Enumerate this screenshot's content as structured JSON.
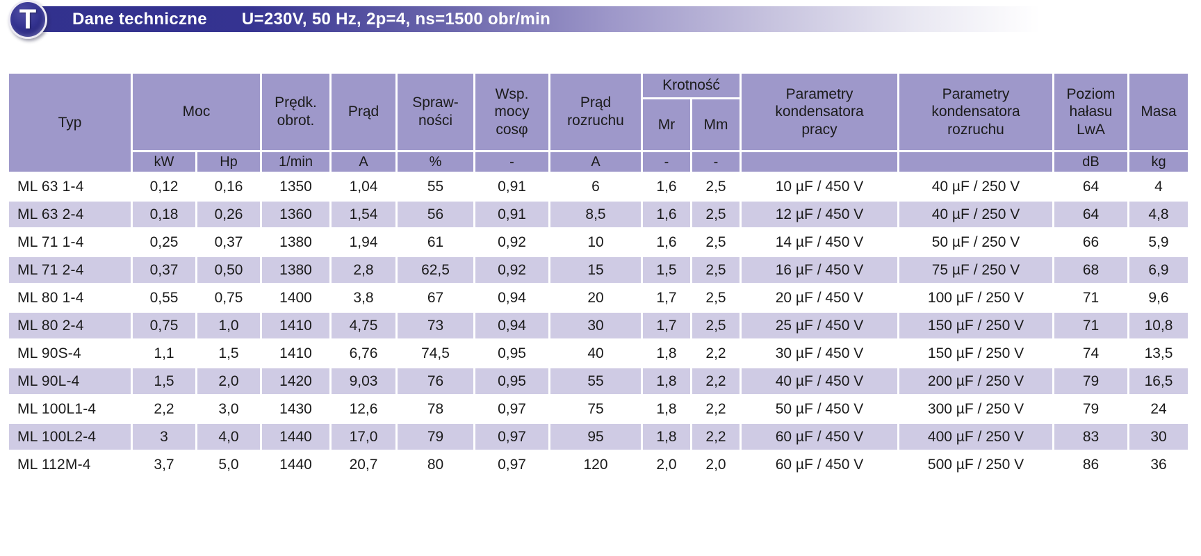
{
  "title_bar": {
    "logo_letter": "T",
    "title": "Dane techniczne",
    "subtitle": "U=230V, 50 Hz, 2p=4, ns=1500 obr/min"
  },
  "colors": {
    "bar_dark": "#32318d",
    "header_cell": "#9e98ca",
    "row_shade": "#cfcbe4"
  },
  "table": {
    "headers": {
      "typ": "Typ",
      "moc": "Moc",
      "predk_obrot": "Prędk.\nobrot.",
      "prad": "Prąd",
      "sprawnosc": "Spraw-\nności",
      "wsp_mocy": "Wsp.\nmocy\ncosφ",
      "prad_rozruchu": "Prąd\nrozruchu",
      "krotnosc": "Krotność",
      "mr": "Mr",
      "mm": "Mm",
      "kondensator_pracy": "Parametry\nkondensatora\npracy",
      "kondensator_rozruchu": "Parametry\nkondensatora\nrozruchu",
      "poziom_halasu": "Poziom\nhałasu\nLwA",
      "masa": "Masa"
    },
    "units": [
      "kW",
      "Hp",
      "1/min",
      "A",
      "%",
      "-",
      "A",
      "-",
      "-",
      "",
      "",
      "dB",
      "kg"
    ],
    "rows": [
      [
        "ML 63 1-4",
        "0,12",
        "0,16",
        "1350",
        "1,04",
        "55",
        "0,91",
        "6",
        "1,6",
        "2,5",
        "10 µF / 450 V",
        "40 µF / 250 V",
        "64",
        "4"
      ],
      [
        "ML 63 2-4",
        "0,18",
        "0,26",
        "1360",
        "1,54",
        "56",
        "0,91",
        "8,5",
        "1,6",
        "2,5",
        "12 µF / 450 V",
        "40 µF / 250 V",
        "64",
        "4,8"
      ],
      [
        "ML 71 1-4",
        "0,25",
        "0,37",
        "1380",
        "1,94",
        "61",
        "0,92",
        "10",
        "1,6",
        "2,5",
        "14 µF / 450 V",
        "50 µF / 250 V",
        "66",
        "5,9"
      ],
      [
        "ML 71 2-4",
        "0,37",
        "0,50",
        "1380",
        "2,8",
        "62,5",
        "0,92",
        "15",
        "1,5",
        "2,5",
        "16 µF / 450 V",
        "75 µF / 250 V",
        "68",
        "6,9"
      ],
      [
        "ML 80 1-4",
        "0,55",
        "0,75",
        "1400",
        "3,8",
        "67",
        "0,94",
        "20",
        "1,7",
        "2,5",
        "20 µF / 450 V",
        "100 µF / 250 V",
        "71",
        "9,6"
      ],
      [
        "ML 80 2-4",
        "0,75",
        "1,0",
        "1410",
        "4,75",
        "73",
        "0,94",
        "30",
        "1,7",
        "2,5",
        "25 µF / 450 V",
        "150 µF / 250 V",
        "71",
        "10,8"
      ],
      [
        "ML 90S-4",
        "1,1",
        "1,5",
        "1410",
        "6,76",
        "74,5",
        "0,95",
        "40",
        "1,8",
        "2,2",
        "30 µF / 450 V",
        "150 µF / 250 V",
        "74",
        "13,5"
      ],
      [
        "ML 90L-4",
        "1,5",
        "2,0",
        "1420",
        "9,03",
        "76",
        "0,95",
        "55",
        "1,8",
        "2,2",
        "40 µF / 450 V",
        "200 µF / 250 V",
        "79",
        "16,5"
      ],
      [
        "ML 100L1-4",
        "2,2",
        "3,0",
        "1430",
        "12,6",
        "78",
        "0,97",
        "75",
        "1,8",
        "2,2",
        "50 µF / 450 V",
        "300 µF / 250 V",
        "79",
        "24"
      ],
      [
        "ML 100L2-4",
        "3",
        "4,0",
        "1440",
        "17,0",
        "79",
        "0,97",
        "95",
        "1,8",
        "2,2",
        "60 µF / 450 V",
        "400 µF / 250 V",
        "83",
        "30"
      ],
      [
        "ML 112M-4",
        "3,7",
        "5,0",
        "1440",
        "20,7",
        "80",
        "0,97",
        "120",
        "2,0",
        "2,0",
        "60 µF / 450 V",
        "500 µF / 250 V",
        "86",
        "36"
      ]
    ]
  }
}
